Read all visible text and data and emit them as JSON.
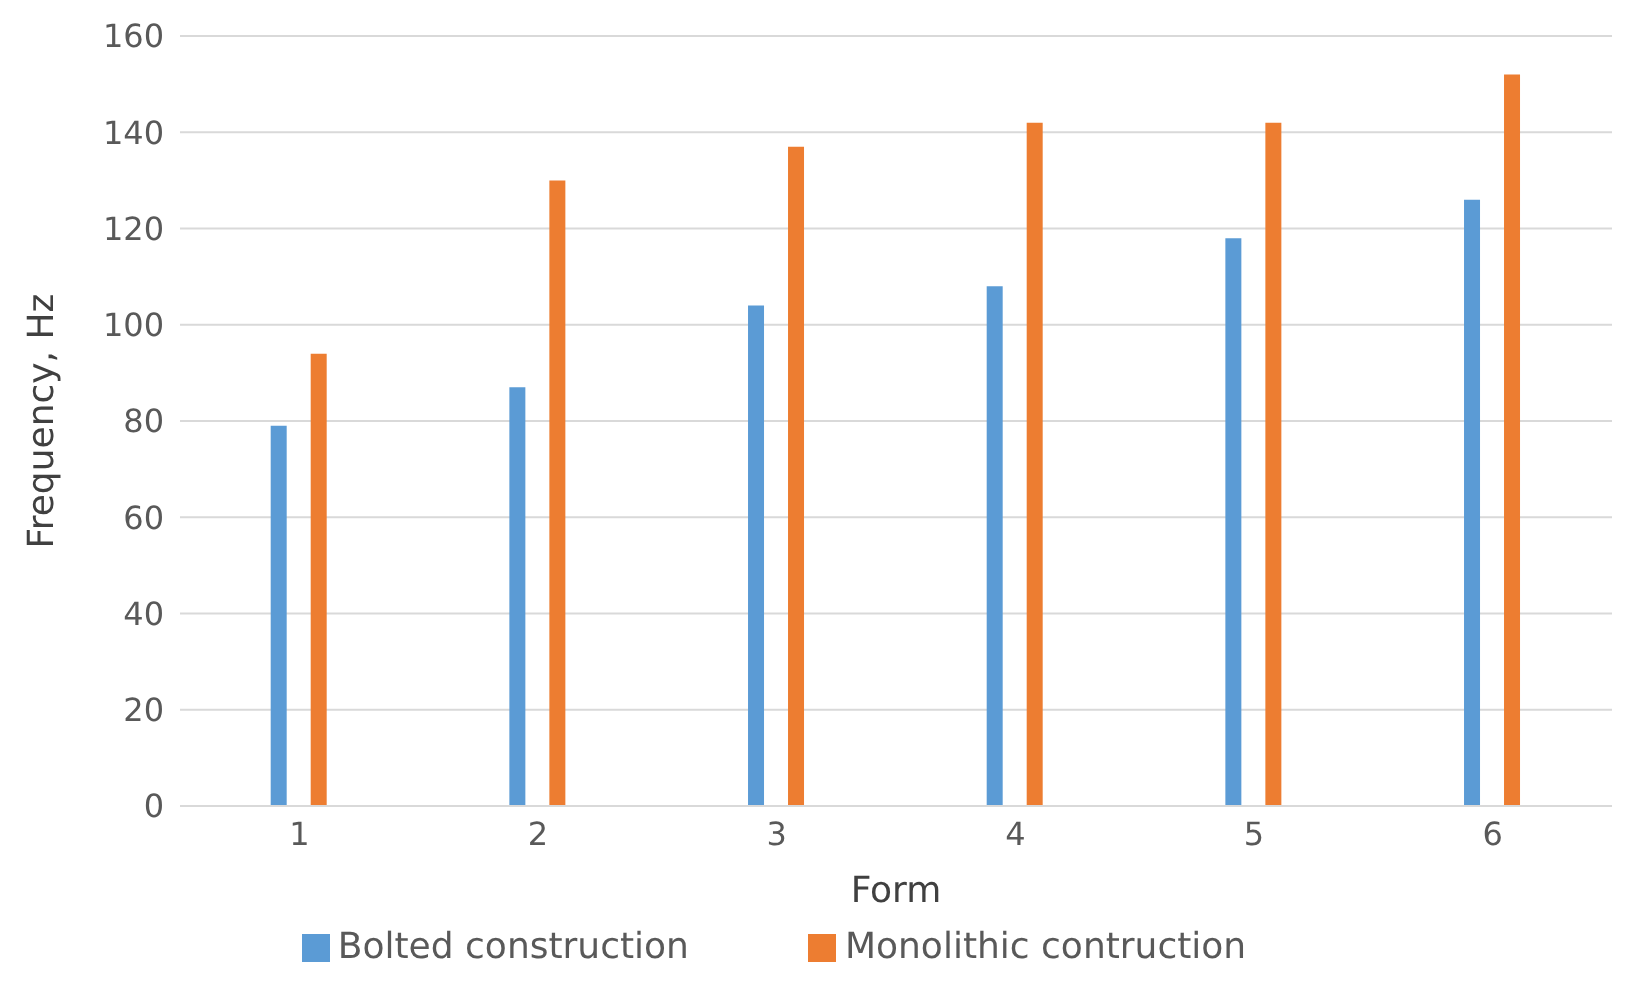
{
  "chart_data": {
    "type": "bar",
    "xlabel": "Form",
    "ylabel": "Frequency, Hz",
    "categories": [
      "1",
      "2",
      "3",
      "4",
      "5",
      "6"
    ],
    "series": [
      {
        "name": "Bolted construction",
        "color": "#5b9bd5",
        "values": [
          79,
          87,
          104,
          108,
          118,
          126
        ]
      },
      {
        "name": "Monolithic contruction",
        "color": "#ed7d31",
        "values": [
          94,
          130,
          137,
          142,
          142,
          152
        ]
      }
    ],
    "ylim": [
      0,
      160
    ],
    "yticks": [
      0,
      20,
      40,
      60,
      80,
      100,
      120,
      140,
      160
    ],
    "grid": "y",
    "legend": "bottom"
  }
}
